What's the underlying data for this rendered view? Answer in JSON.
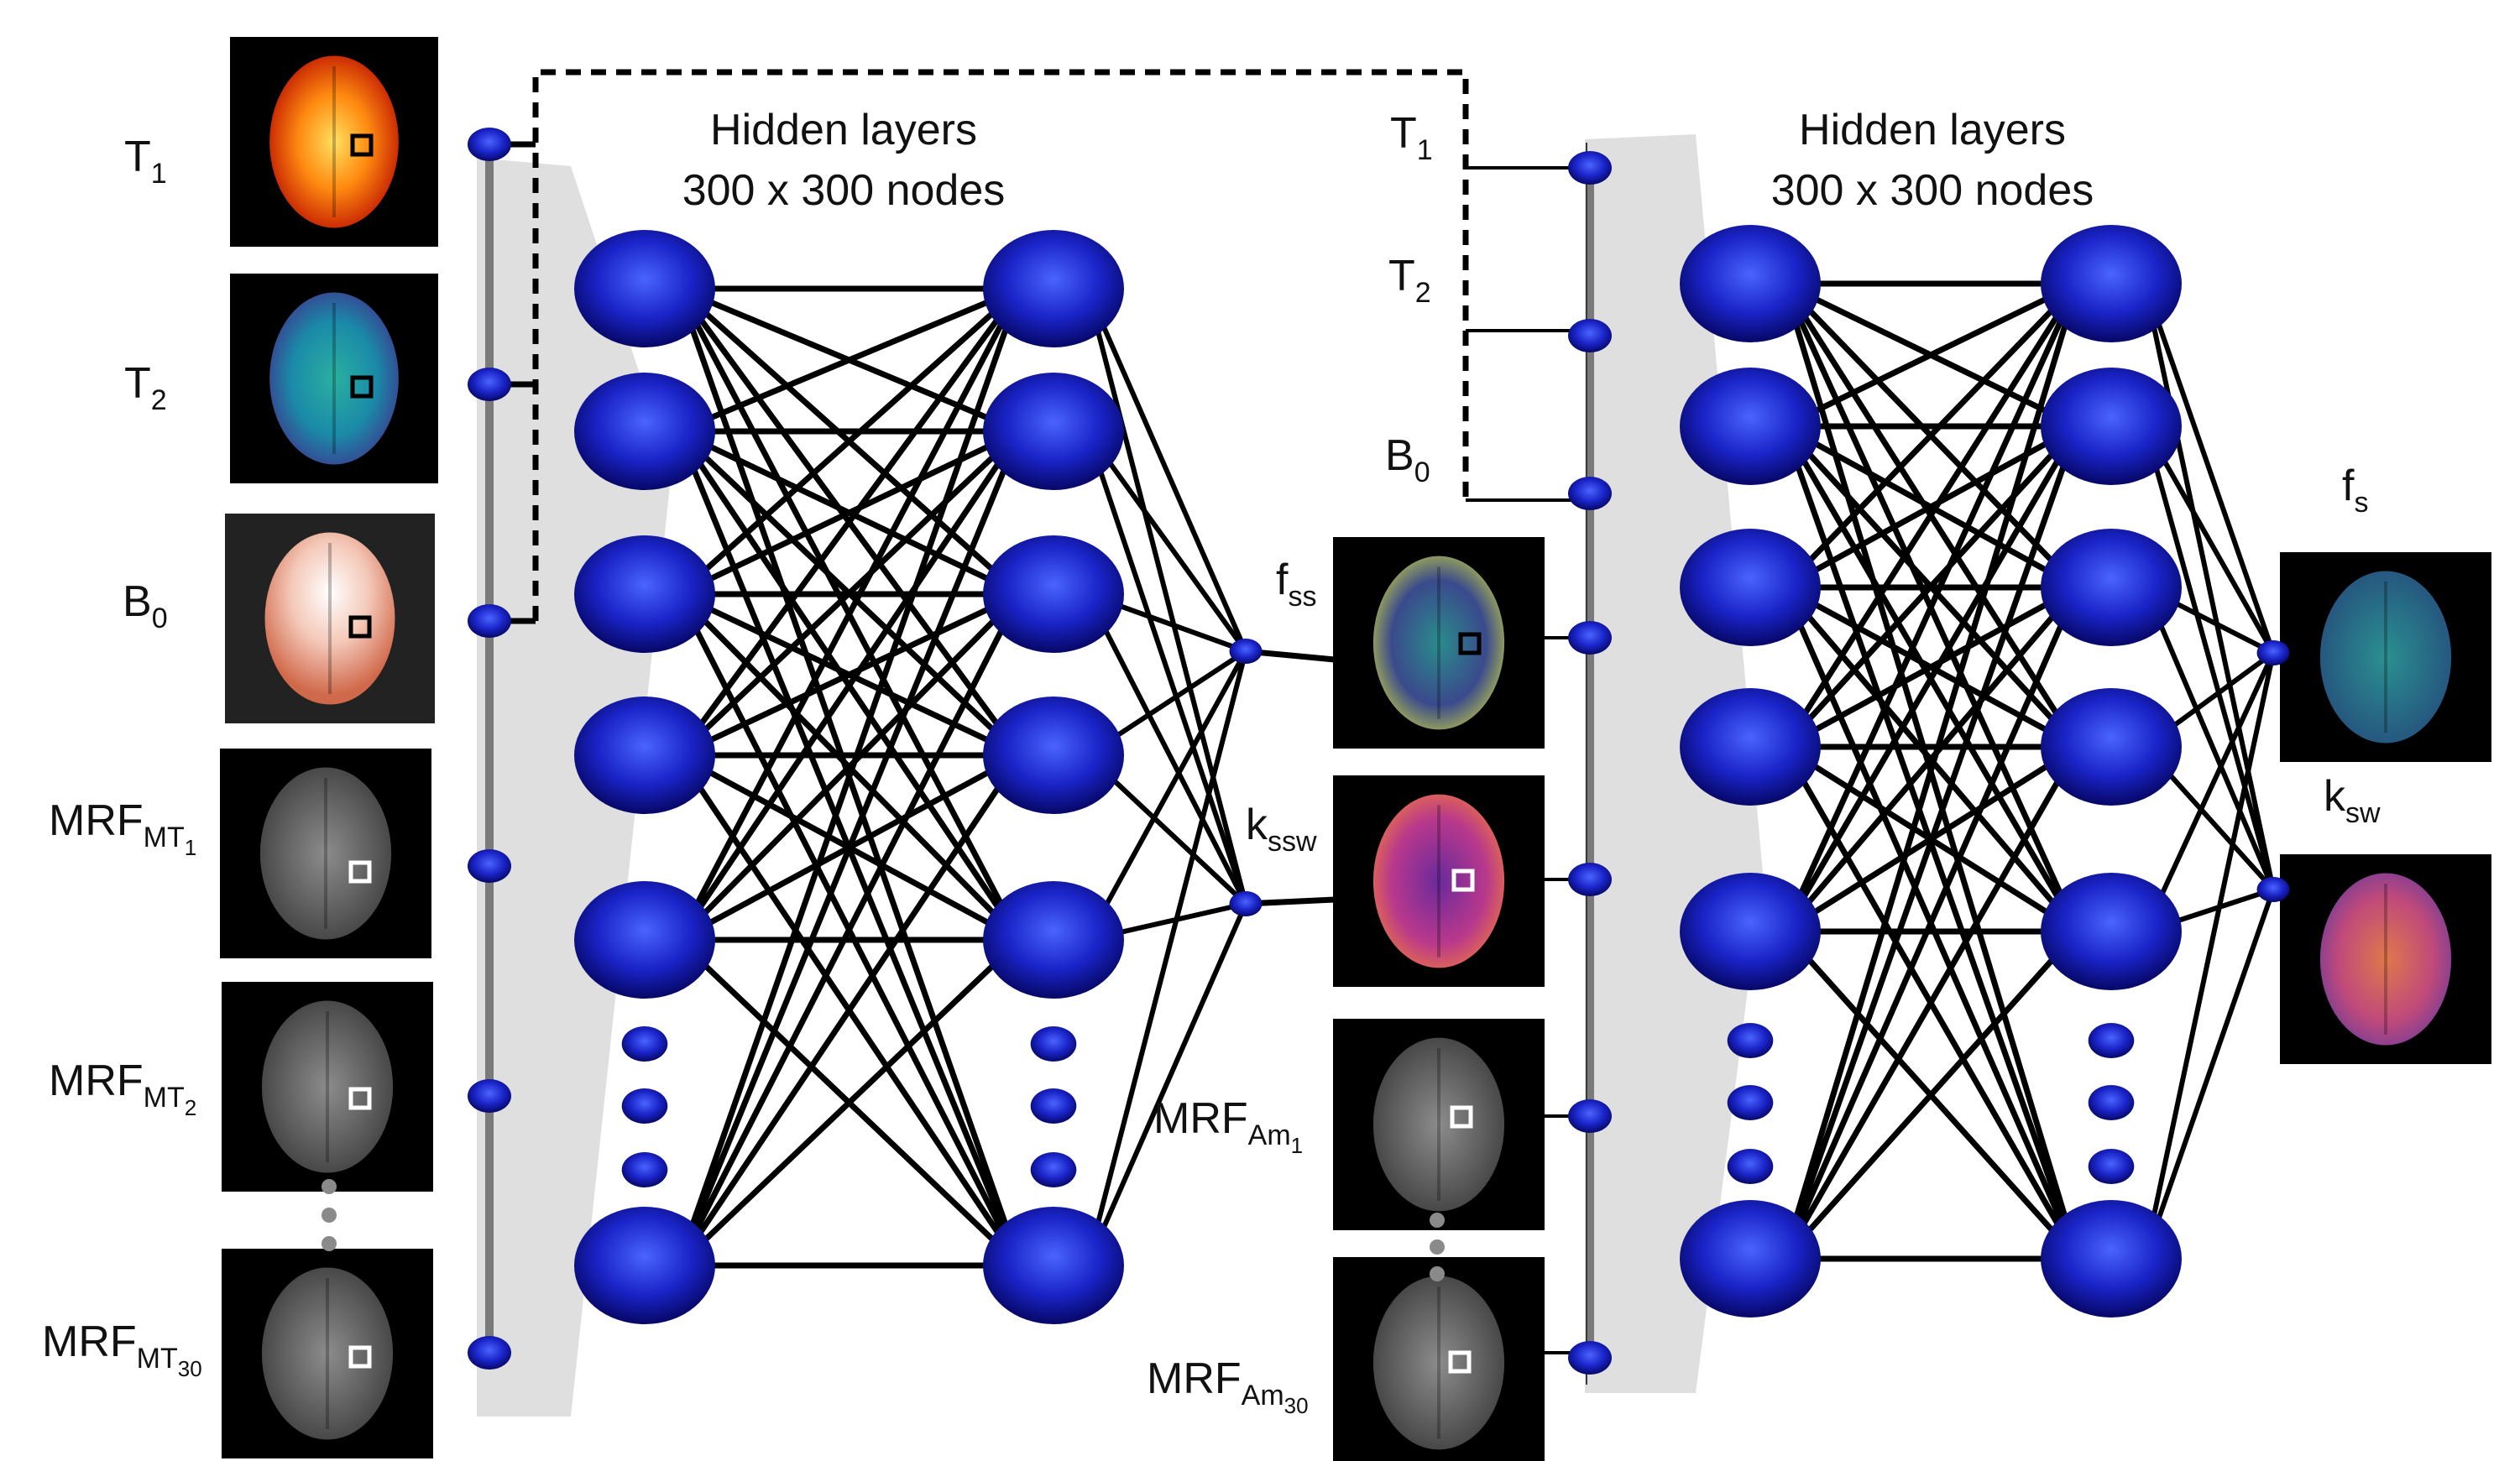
{
  "colors": {
    "node_light": "#4a64ff",
    "node_mid": "#1a24c8",
    "node_dark": "#05055e",
    "edge": "#000000",
    "bus": "#7a7a7a",
    "funnel": "#d4d4d4",
    "dashed": "#000000",
    "dots": "#8a8a8a"
  },
  "network1": {
    "title_line1": "Hidden layers",
    "title_line2": "300 x 300 nodes",
    "inputs": [
      {
        "label": "T",
        "sub": "1",
        "image": "t1-map"
      },
      {
        "label": "T",
        "sub": "2",
        "image": "t2-map"
      },
      {
        "label": "B",
        "sub": "0",
        "image": "b0-map"
      },
      {
        "label": "MRF",
        "sub": "MT",
        "subsub": "1",
        "image": "mrf-image"
      },
      {
        "label": "MRF",
        "sub": "MT",
        "subsub": "2",
        "image": "mrf-image"
      },
      {
        "label": "MRF",
        "sub": "MT",
        "subsub": "30",
        "image": "mrf-image"
      }
    ],
    "outputs": [
      {
        "label": "f",
        "sub": "ss",
        "image": "fss-map"
      },
      {
        "label": "k",
        "sub": "ssw",
        "image": "kssw-map"
      }
    ]
  },
  "network2": {
    "title_line1": "Hidden layers",
    "title_line2": "300 x 300 nodes",
    "inputs": [
      {
        "label": "T",
        "sub": "1"
      },
      {
        "label": "T",
        "sub": "2"
      },
      {
        "label": "B",
        "sub": "0"
      },
      {
        "label": "MRF",
        "sub": "Am",
        "subsub": "1",
        "image": "mrf-image"
      },
      {
        "label": "MRF",
        "sub": "Am",
        "subsub": "30",
        "image": "mrf-image"
      }
    ],
    "outputs": [
      {
        "label": "f",
        "sub": "s",
        "image": "fs-map"
      },
      {
        "label": "k",
        "sub": "sw",
        "image": "ksw-map"
      }
    ]
  }
}
